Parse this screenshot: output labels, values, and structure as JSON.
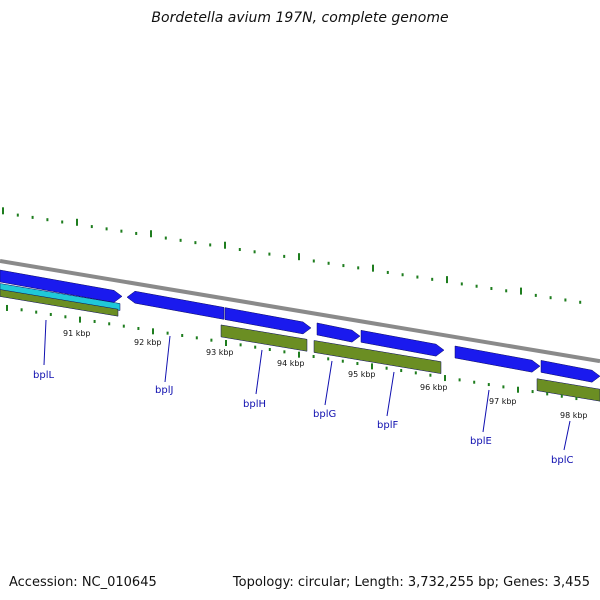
{
  "title": "Bordetella avium 197N, complete genome",
  "footer": {
    "accession": "Accession: NC_010645",
    "summary": "Topology: circular; Length: 3,732,255 bp; Genes: 3,455"
  },
  "colors": {
    "backbone": "#8a8a8a",
    "forward_cds": "#1a1aee",
    "reverse_cds": "#6b8e23",
    "rna": "#20c8d8",
    "tick": "#1e7d1e",
    "gene_label": "#1010b0"
  },
  "chart_data": {
    "type": "genome_map",
    "scale_labels": [
      "91 kbp",
      "92 kbp",
      "93 kbp",
      "94 kbp",
      "95 kbp",
      "96 kbp",
      "97 kbp",
      "98 kbp"
    ],
    "gene_labels": [
      "bplL",
      "bplJ",
      "bplH",
      "bplG",
      "bplF",
      "bplE",
      "bplC"
    ]
  }
}
